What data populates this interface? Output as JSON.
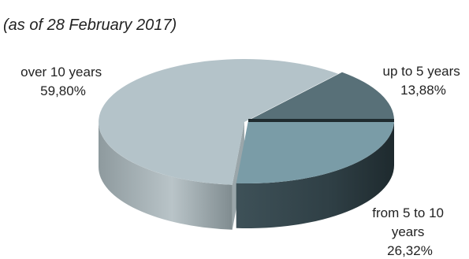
{
  "chart_data": {
    "type": "pie",
    "subtitle": "(as of 28 February 2017)",
    "series": [
      {
        "name": "over 10 years",
        "label_lines": [
          "over 10 years",
          "59,80%"
        ],
        "value": 59.8,
        "color": "#b4c3c9"
      },
      {
        "name": "up to 5 years",
        "label_lines": [
          "up to 5 years",
          "13,88%"
        ],
        "value": 13.88,
        "color": "#587078"
      },
      {
        "name": "from 5 to 10 years",
        "label_lines": [
          "from 5 to 10",
          "years",
          "26,32%"
        ],
        "value": 26.32,
        "color": "#7a9ca7"
      }
    ],
    "legend": "none",
    "style": "3d-exploded"
  }
}
